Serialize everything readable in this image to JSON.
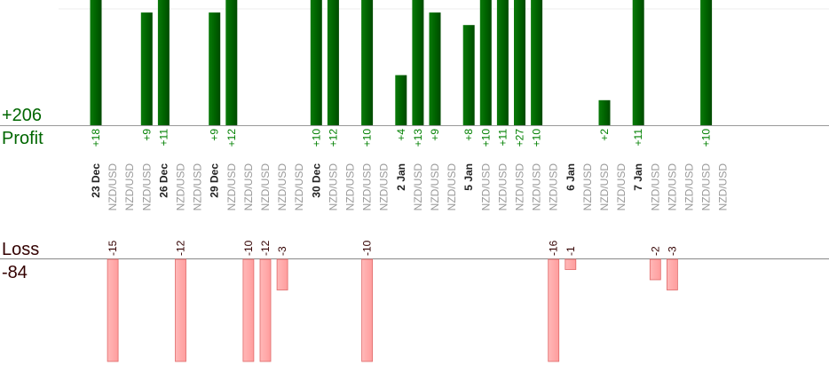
{
  "summary": {
    "profit_total": "+206",
    "profit_label": "Profit",
    "loss_label": "Loss",
    "loss_total": "-84"
  },
  "colors": {
    "profit_bar": "#006400",
    "profit_text": "#008000",
    "loss_bar": "#ffaaaa",
    "loss_text": "#330000",
    "date_text": "#222222",
    "pair_text": "#999999"
  },
  "chart_data": {
    "type": "bar",
    "title": "",
    "xlabel": "",
    "ylabel": "",
    "x": [
      "23 Dec",
      "NZD/USD",
      "NZD/USD",
      "NZD/USD",
      "26 Dec",
      "NZD/USD",
      "NZD/USD",
      "29 Dec",
      "NZD/USD",
      "NZD/USD",
      "NZD/USD",
      "NZD/USD",
      "NZD/USD",
      "30 Dec",
      "NZD/USD",
      "NZD/USD",
      "NZD/USD",
      "NZD/USD",
      "2 Jan",
      "NZD/USD",
      "NZD/USD",
      "NZD/USD",
      "5 Jan",
      "NZD/USD",
      "NZD/USD",
      "NZD/USD",
      "NZD/USD",
      "NZD/USD",
      "6 Jan",
      "NZD/USD",
      "NZD/USD",
      "NZD/USD",
      "7 Jan",
      "NZD/USD",
      "NZD/USD",
      "NZD/USD",
      "NZD/USD",
      "NZD/USD"
    ],
    "series": [
      {
        "name": "Profit",
        "values": [
          18,
          null,
          null,
          9,
          11,
          null,
          null,
          9,
          12,
          null,
          null,
          null,
          null,
          10,
          12,
          null,
          10,
          null,
          4,
          13,
          9,
          null,
          8,
          10,
          11,
          27,
          10,
          null,
          null,
          null,
          2,
          null,
          11,
          null,
          null,
          null,
          10,
          null
        ],
        "labels": [
          "+18",
          "",
          "",
          "+9",
          "+11",
          "",
          "",
          "+9",
          "+12",
          "",
          "",
          "",
          "",
          "+10",
          "+12",
          "",
          "+10",
          "",
          "+4",
          "+13",
          "+9",
          "",
          "+8",
          "+10",
          "+11",
          "+27",
          "+10",
          "",
          "",
          "",
          "+2",
          "",
          "+11",
          "",
          "",
          "",
          "+10",
          ""
        ]
      },
      {
        "name": "Loss",
        "values": [
          null,
          -15,
          null,
          null,
          null,
          -12,
          null,
          null,
          null,
          -10,
          -12,
          -3,
          null,
          null,
          null,
          null,
          -10,
          null,
          null,
          null,
          null,
          null,
          null,
          null,
          null,
          null,
          null,
          -16,
          -1,
          null,
          null,
          null,
          null,
          -2,
          -3,
          null,
          null,
          null
        ],
        "labels": [
          "",
          "-15",
          "",
          "",
          "",
          "-12",
          "",
          "",
          "",
          "-10",
          "-12",
          "-3",
          "",
          "",
          "",
          "",
          "-10",
          "",
          "",
          "",
          "",
          "",
          "",
          "",
          "",
          "",
          "",
          "-16",
          "-1",
          "",
          "",
          "",
          "",
          "-2",
          "-3",
          "",
          "",
          ""
        ]
      }
    ],
    "profit_ylim": [
      0,
      10
    ],
    "loss_ylim": [
      -10,
      0
    ],
    "grid": false,
    "legend": "none"
  }
}
